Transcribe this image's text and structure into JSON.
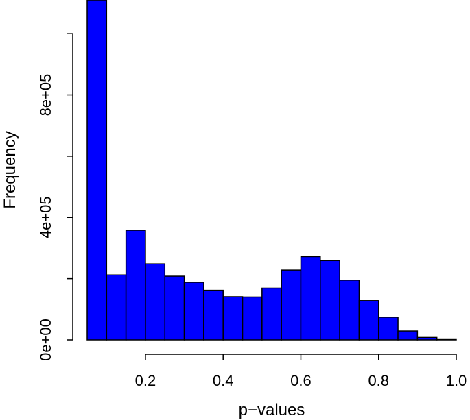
{
  "chart_data": {
    "type": "bar",
    "title": "",
    "xlabel": "p−values",
    "ylabel": "Frequency",
    "bar_color": "#0000ff",
    "bar_edge_color": "#000000",
    "bins": [
      {
        "start": 0.05,
        "end": 0.1,
        "value": 1110000
      },
      {
        "start": 0.1,
        "end": 0.15,
        "value": 212000
      },
      {
        "start": 0.15,
        "end": 0.2,
        "value": 358000
      },
      {
        "start": 0.2,
        "end": 0.25,
        "value": 248000
      },
      {
        "start": 0.25,
        "end": 0.3,
        "value": 208000
      },
      {
        "start": 0.3,
        "end": 0.35,
        "value": 188000
      },
      {
        "start": 0.35,
        "end": 0.4,
        "value": 162000
      },
      {
        "start": 0.4,
        "end": 0.45,
        "value": 141000
      },
      {
        "start": 0.45,
        "end": 0.5,
        "value": 140000
      },
      {
        "start": 0.5,
        "end": 0.55,
        "value": 169000
      },
      {
        "start": 0.55,
        "end": 0.6,
        "value": 228000
      },
      {
        "start": 0.6,
        "end": 0.65,
        "value": 272000
      },
      {
        "start": 0.65,
        "end": 0.7,
        "value": 259000
      },
      {
        "start": 0.7,
        "end": 0.75,
        "value": 195000
      },
      {
        "start": 0.75,
        "end": 0.8,
        "value": 128000
      },
      {
        "start": 0.8,
        "end": 0.85,
        "value": 74000
      },
      {
        "start": 0.85,
        "end": 0.9,
        "value": 29000
      },
      {
        "start": 0.9,
        "end": 0.95,
        "value": 8000
      },
      {
        "start": 0.95,
        "end": 1.0,
        "value": 1000
      }
    ],
    "x_ticks": [
      0.2,
      0.4,
      0.6,
      0.8,
      1.0
    ],
    "x_tick_labels": [
      "0.2",
      "0.4",
      "0.6",
      "0.8",
      "1.0"
    ],
    "y_ticks": [
      0,
      200000,
      400000,
      600000,
      800000,
      1000000
    ],
    "y_tick_labels": [
      "0e+00",
      "",
      "4e+05",
      "",
      "8e+05",
      ""
    ],
    "xlim": [
      0.05,
      1.0
    ],
    "ylim": [
      0,
      1110000
    ],
    "grid": false,
    "legend": "none"
  }
}
